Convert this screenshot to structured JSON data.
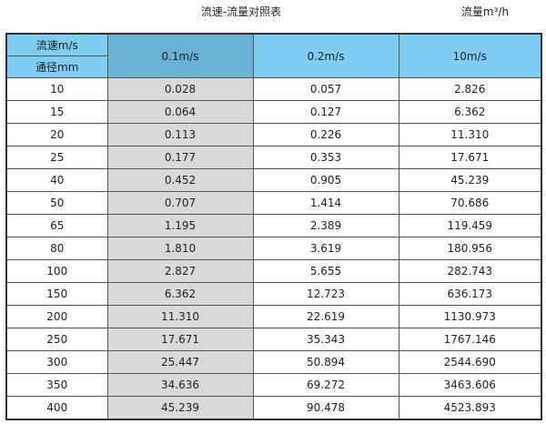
{
  "title": "流速-流量对照表",
  "unit_label": "流量m³/h",
  "colors": {
    "header": "#7fcdf2",
    "header_selected": "#6ab1d6",
    "highlight_column": "#d9d9d9"
  },
  "header": {
    "speed_label": "流速m/s",
    "diameter_label": "通径mm",
    "columns": [
      "0.1m/s",
      "0.2m/s",
      "10m/s"
    ]
  },
  "rows": [
    [
      "10",
      "0.028",
      "0.057",
      "2.826"
    ],
    [
      "15",
      "0.064",
      "0.127",
      "6.362"
    ],
    [
      "20",
      "0.113",
      "0.226",
      "11.310"
    ],
    [
      "25",
      "0.177",
      "0.353",
      "17.671"
    ],
    [
      "40",
      "0.452",
      "0.905",
      "45.239"
    ],
    [
      "50",
      "0.707",
      "1.414",
      "70.686"
    ],
    [
      "65",
      "1.195",
      "2.389",
      "119.459"
    ],
    [
      "80",
      "1.810",
      "3.619",
      "180.956"
    ],
    [
      "100",
      "2.827",
      "5.655",
      "282.743"
    ],
    [
      "150",
      "6.362",
      "12.723",
      "636.173"
    ],
    [
      "200",
      "11.310",
      "22.619",
      "1130.973"
    ],
    [
      "250",
      "17.671",
      "35.343",
      "1767.146"
    ],
    [
      "300",
      "25.447",
      "50.894",
      "2544.690"
    ],
    [
      "350",
      "34.636",
      "69.272",
      "3463.606"
    ],
    [
      "400",
      "45.239",
      "90.478",
      "4523.893"
    ]
  ]
}
